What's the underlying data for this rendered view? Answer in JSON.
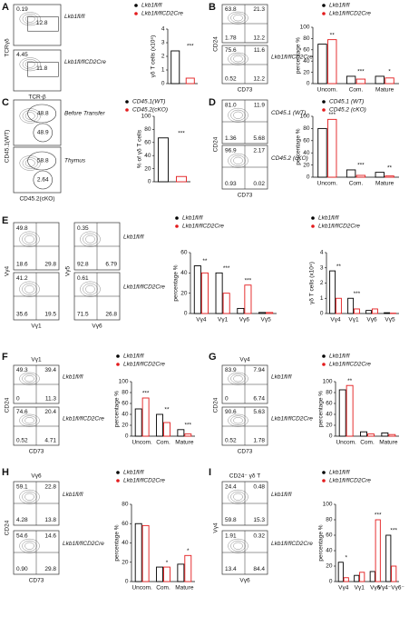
{
  "panel_labels": [
    "A",
    "B",
    "C",
    "D",
    "E",
    "F",
    "G",
    "H",
    "I"
  ],
  "flow_panels": [
    {
      "x_label": "TCR-β",
      "y_label": "TCRγδ",
      "plots": [
        {
          "numbers": {
            "top_left": "0.19",
            "center": "12.8"
          },
          "side_label": "Lkb1fl/fl"
        },
        {
          "numbers": {
            "top_left": "4.45",
            "center": "11.8"
          },
          "side_label": "Lkb1fl/flCD2Cre"
        }
      ]
    },
    {
      "x_label": "CD73",
      "y_label": "CD24",
      "plots": [
        {
          "numbers": {
            "top_left": "63.8",
            "top_right": "21.3",
            "bottom_left": "1.78",
            "bottom_right": "12.2"
          }
        },
        {
          "numbers": {
            "top_left": "75.6",
            "top_right": "11.6",
            "bottom_left": "0.52",
            "bottom_right": "12.2"
          },
          "side_label": "Lkb1fl/flCD2Cre"
        }
      ]
    },
    {
      "x_label": "CD45.2(cKO)",
      "y_label": "CD45.1(WT)",
      "plots": [
        {
          "numbers": {
            "upper": "48.8",
            "lower": "48.9"
          },
          "side_label": "Before Transfer"
        },
        {
          "numbers": {
            "upper": "58.8",
            "lower": "2.64"
          },
          "side_label": "Thymus"
        }
      ]
    },
    {
      "x_label": "CD73",
      "y_label": "CD24",
      "plots": [
        {
          "numbers": {
            "top_left": "81.0",
            "top_right": "11.9",
            "bottom_left": "1.36",
            "bottom_right": "5.68"
          },
          "side_label": "CD45.1 (WT)"
        },
        {
          "numbers": {
            "top_left": "96.9",
            "top_right": "2.17",
            "bottom_left": "0.93",
            "bottom_right": "0.02"
          },
          "side_label": "CD45.2 (cKO)"
        }
      ]
    },
    {
      "x_label": "Vγ1",
      "y_label": "Vγ4",
      "plots": [
        {
          "numbers": {
            "top_left": "49.8",
            "bottom_left": "18.6",
            "bottom_right": "29.8"
          }
        },
        {
          "numbers": {
            "top_left": "41.2",
            "bottom_left": "35.6",
            "bottom_right": "19.5"
          }
        }
      ]
    },
    {
      "x_label": "Vγ6",
      "y_label": "Vγ5",
      "plots": [
        {
          "numbers": {
            "top_left": "0.35",
            "bottom_left": "92.8",
            "bottom_right": "6.79"
          },
          "side_label": "Lkb1fl/fl"
        },
        {
          "numbers": {
            "top_left": "0.61",
            "bottom_left": "71.5",
            "bottom_right": "26.8"
          },
          "side_label": "Lkb1fl/flCD2Cre"
        }
      ]
    },
    {
      "title": "Vγ1",
      "x_label": "CD73",
      "y_label": "CD24",
      "plots": [
        {
          "numbers": {
            "top_left": "49.3",
            "top_right": "39.4",
            "bottom_left": "0",
            "bottom_right": "11.3"
          },
          "side_label": "Lkb1fl/fl"
        },
        {
          "numbers": {
            "top_left": "74.6",
            "top_right": "20.4",
            "bottom_left": "0.52",
            "bottom_right": "4.71"
          },
          "side_label": "Lkb1fl/flCD2Cre"
        }
      ]
    },
    {
      "title": "Vγ4",
      "x_label": "CD73",
      "y_label": "CD24",
      "plots": [
        {
          "numbers": {
            "top_left": "83.9",
            "top_right": "7.94",
            "bottom_left": "0",
            "bottom_right": "6.74"
          },
          "side_label": "Lkb1fl/fl"
        },
        {
          "numbers": {
            "top_left": "90.6",
            "top_right": "5.63",
            "bottom_left": "0.52",
            "bottom_right": "1.78"
          },
          "side_label": "Lkb1fl/flCD2Cre"
        }
      ]
    },
    {
      "title": "Vγ6",
      "x_label": "CD73",
      "y_label": "CD24",
      "plots": [
        {
          "numbers": {
            "top_left": "59.1",
            "top_right": "22.8",
            "bottom_left": "4.28",
            "bottom_right": "13.8"
          },
          "side_label": "Lkb1fl/fl"
        },
        {
          "numbers": {
            "top_left": "54.6",
            "top_right": "14.6",
            "bottom_left": "0.90",
            "bottom_right": "29.8"
          },
          "side_label": "Lkb1fl/flCD2Cre"
        }
      ]
    },
    {
      "title": "CD24⁻ γδ T",
      "x_label": "Vγ6",
      "y_label": "Vγ4",
      "plots": [
        {
          "numbers": {
            "top_left": "24.4",
            "top_right": "0.48",
            "bottom_left": "59.8",
            "bottom_right": "15.3"
          },
          "side_label": "Lkb1fl/fl"
        },
        {
          "numbers": {
            "top_left": "1.91",
            "top_right": "0.32",
            "bottom_left": "13.4",
            "bottom_right": "84.4"
          },
          "side_label": "Lkb1fl/flCD2Cre"
        }
      ]
    }
  ],
  "chart_data": [
    {
      "type": "bar",
      "ylabel": "γδ T cells (x10⁵)",
      "series": [
        {
          "name": "Lkb1fl/fl",
          "color": "#000000",
          "values": [
            2.4
          ]
        },
        {
          "name": "Lkb1fl/flCD2Cre",
          "color": "#e31a1c",
          "values": [
            0.4
          ]
        }
      ],
      "significance": [
        "***"
      ],
      "ylim": [
        0,
        4
      ],
      "yticks": [
        0,
        1,
        2,
        3,
        4
      ]
    },
    {
      "type": "bar",
      "ylabel": "percentage %",
      "categories": [
        "Uncom.",
        "Com.",
        "Mature"
      ],
      "series": [
        {
          "name": "Lkb1fl/fl",
          "color": "#000000",
          "values": [
            70,
            13,
            13
          ]
        },
        {
          "name": "Lkb1fl/flCD2Cre",
          "color": "#e31a1c",
          "values": [
            78,
            8,
            10
          ]
        }
      ],
      "significance": [
        "**",
        "***",
        "*"
      ],
      "ylim": [
        0,
        100
      ],
      "yticks": [
        0,
        20,
        40,
        60,
        80,
        100
      ]
    },
    {
      "type": "bar",
      "ylabel": "% of γδ T cells",
      "series": [
        {
          "name": "CD45.1(WT)",
          "color": "#000000",
          "values": [
            67
          ]
        },
        {
          "name": "CD45.2(cKO)",
          "color": "#e31a1c",
          "values": [
            8
          ]
        }
      ],
      "significance": [
        "***"
      ],
      "ylim": [
        0,
        100
      ],
      "yticks": [
        0,
        20,
        40,
        60,
        80,
        100
      ]
    },
    {
      "type": "bar",
      "ylabel": "percentage %",
      "categories": [
        "Uncom.",
        "Com.",
        "Mature"
      ],
      "series": [
        {
          "name": "CD45.1 (WT)",
          "color": "#000000",
          "values": [
            80,
            12,
            8
          ]
        },
        {
          "name": "CD45.2 (cKO)",
          "color": "#e31a1c",
          "values": [
            95,
            3,
            2
          ]
        }
      ],
      "significance": [
        "***",
        "***",
        "**"
      ],
      "ylim": [
        0,
        100
      ],
      "yticks": [
        0,
        20,
        40,
        60,
        80,
        100
      ]
    },
    {
      "type": "bar",
      "ylabel": "percentage %",
      "categories": [
        "Vγ4",
        "Vγ1",
        "Vγ6",
        "Vγ5"
      ],
      "series": [
        {
          "name": "Lkb1fl/fl",
          "color": "#000000",
          "values": [
            47,
            40,
            5,
            1
          ]
        },
        {
          "name": "Lkb1fl/flCD2Cre",
          "color": "#e31a1c",
          "values": [
            40,
            20,
            28,
            1
          ]
        }
      ],
      "significance": [
        "**",
        "***",
        "***",
        null
      ],
      "ylim": [
        0,
        60
      ],
      "yticks": [
        0,
        20,
        40,
        60
      ]
    },
    {
      "type": "bar",
      "ylabel": "γδ T cells (x10⁴)",
      "categories": [
        "Vγ4",
        "Vγ1",
        "Vγ6",
        "Vγ5"
      ],
      "series": [
        {
          "name": "Lkb1fl/fl",
          "color": "#000000",
          "values": [
            2.8,
            1.0,
            0.2,
            0.05
          ]
        },
        {
          "name": "Lkb1fl/flCD2Cre",
          "color": "#e31a1c",
          "values": [
            1.0,
            0.3,
            0.3,
            0.02
          ]
        }
      ],
      "significance": [
        "**",
        "***",
        null,
        null
      ],
      "ylim": [
        0,
        4
      ],
      "yticks": [
        0,
        1,
        2,
        3,
        4
      ]
    },
    {
      "type": "bar",
      "ylabel": "percentage %",
      "categories": [
        "Uncom.",
        "Com.",
        "Mature"
      ],
      "series": [
        {
          "name": "Lkb1fl/fl",
          "color": "#000000",
          "values": [
            50,
            40,
            12
          ]
        },
        {
          "name": "Lkb1fl/flCD2Cre",
          "color": "#e31a1c",
          "values": [
            70,
            25,
            4
          ]
        }
      ],
      "significance": [
        "***",
        "**",
        "***"
      ],
      "ylim": [
        0,
        100
      ],
      "yticks": [
        0,
        20,
        40,
        60,
        80,
        100
      ]
    },
    {
      "type": "bar",
      "ylabel": "percentage %",
      "categories": [
        "Uncom.",
        "Com.",
        "Mature"
      ],
      "series": [
        {
          "name": "Lkb1fl/fl",
          "color": "#000000",
          "values": [
            85,
            8,
            6
          ]
        },
        {
          "name": "Lkb1fl/flCD2Cre",
          "color": "#e31a1c",
          "values": [
            93,
            4,
            3
          ]
        }
      ],
      "significance": [
        "**",
        null,
        null
      ],
      "ylim": [
        0,
        100
      ],
      "yticks": [
        0,
        20,
        40,
        60,
        80,
        100
      ]
    },
    {
      "type": "bar",
      "ylabel": "percentage %",
      "categories": [
        "Uncom.",
        "Com.",
        "Mature"
      ],
      "series": [
        {
          "name": "Lkb1fl/fl",
          "color": "#000000",
          "values": [
            60,
            15,
            18
          ]
        },
        {
          "name": "Lkb1fl/flCD2Cre",
          "color": "#e31a1c",
          "values": [
            58,
            15,
            27
          ]
        }
      ],
      "significance": [
        null,
        "*",
        "*"
      ],
      "ylim": [
        0,
        80
      ],
      "yticks": [
        0,
        20,
        40,
        60,
        80
      ]
    },
    {
      "type": "bar",
      "ylabel": "percentage %",
      "categories": [
        "Vγ4",
        "Vγ1",
        "Vγ6",
        "Vγ4⁻Vγ6⁻"
      ],
      "series": [
        {
          "name": "Lkb1fl/fl",
          "color": "#000000",
          "values": [
            25,
            8,
            13,
            60
          ]
        },
        {
          "name": "Lkb1fl/flCD2Cre",
          "color": "#e31a1c",
          "values": [
            5,
            12,
            80,
            20
          ]
        }
      ],
      "significance": [
        "*",
        null,
        "***",
        "***"
      ],
      "ylim": [
        0,
        100
      ],
      "yticks": [
        0,
        20,
        40,
        60,
        80,
        100
      ]
    }
  ]
}
